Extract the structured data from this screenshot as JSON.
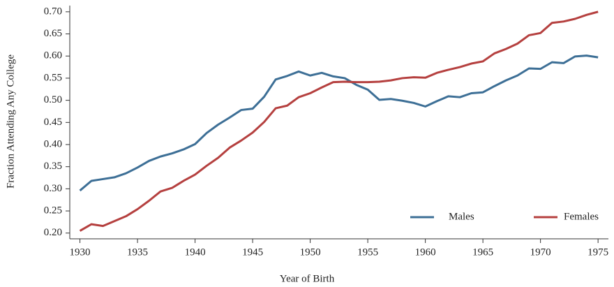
{
  "chart_data": {
    "type": "line",
    "xlabel": "Year of Birth",
    "ylabel": "Fraction Attending Any College",
    "x": [
      1930,
      1931,
      1932,
      1933,
      1934,
      1935,
      1936,
      1937,
      1938,
      1939,
      1940,
      1941,
      1942,
      1943,
      1944,
      1945,
      1946,
      1947,
      1948,
      1949,
      1950,
      1951,
      1952,
      1953,
      1954,
      1955,
      1956,
      1957,
      1958,
      1959,
      1960,
      1961,
      1962,
      1963,
      1964,
      1965,
      1966,
      1967,
      1968,
      1969,
      1970,
      1971,
      1972,
      1973,
      1974,
      1975
    ],
    "series": [
      {
        "name": "Males",
        "color": "#3d6f96",
        "values": [
          0.296,
          0.318,
          0.322,
          0.326,
          0.335,
          0.348,
          0.363,
          0.373,
          0.38,
          0.389,
          0.401,
          0.426,
          0.445,
          0.461,
          0.478,
          0.481,
          0.508,
          0.547,
          0.555,
          0.565,
          0.556,
          0.562,
          0.554,
          0.55,
          0.535,
          0.524,
          0.501,
          0.503,
          0.499,
          0.494,
          0.486,
          0.498,
          0.509,
          0.507,
          0.516,
          0.518,
          0.532,
          0.545,
          0.556,
          0.572,
          0.571,
          0.586,
          0.584,
          0.599,
          0.601,
          0.597
        ]
      },
      {
        "name": "Females",
        "color": "#b5403f",
        "values": [
          0.205,
          0.22,
          0.216,
          0.227,
          0.238,
          0.254,
          0.273,
          0.294,
          0.302,
          0.318,
          0.332,
          0.352,
          0.37,
          0.393,
          0.409,
          0.427,
          0.451,
          0.482,
          0.488,
          0.507,
          0.516,
          0.529,
          0.541,
          0.542,
          0.541,
          0.541,
          0.542,
          0.545,
          0.55,
          0.552,
          0.551,
          0.562,
          0.569,
          0.575,
          0.583,
          0.588,
          0.606,
          0.616,
          0.628,
          0.647,
          0.652,
          0.675,
          0.678,
          0.684,
          0.693,
          0.7
        ]
      }
    ],
    "xlim": [
      1929.3,
      1975.9
    ],
    "xticks": [
      1930,
      1935,
      1940,
      1945,
      1950,
      1955,
      1960,
      1965,
      1970,
      1975
    ],
    "ylim": [
      0.187,
      0.714
    ],
    "yticks": [
      {
        "value": 0.2,
        "label": "0.20"
      },
      {
        "value": 0.25,
        "label": "0.25"
      },
      {
        "value": 0.3,
        "label": "0.30"
      },
      {
        "value": 0.35,
        "label": "0.35"
      },
      {
        "value": 0.4,
        "label": "0.40"
      },
      {
        "value": 0.45,
        "label": "0.45"
      },
      {
        "value": 0.5,
        "label": "0.50"
      },
      {
        "value": 0.55,
        "label": "0.55"
      },
      {
        "value": 0.6,
        "label": "0.60"
      },
      {
        "value": 0.65,
        "label": "0.65"
      },
      {
        "value": 0.7,
        "label": "0.70"
      }
    ],
    "legend": "lower right",
    "grid": false
  }
}
